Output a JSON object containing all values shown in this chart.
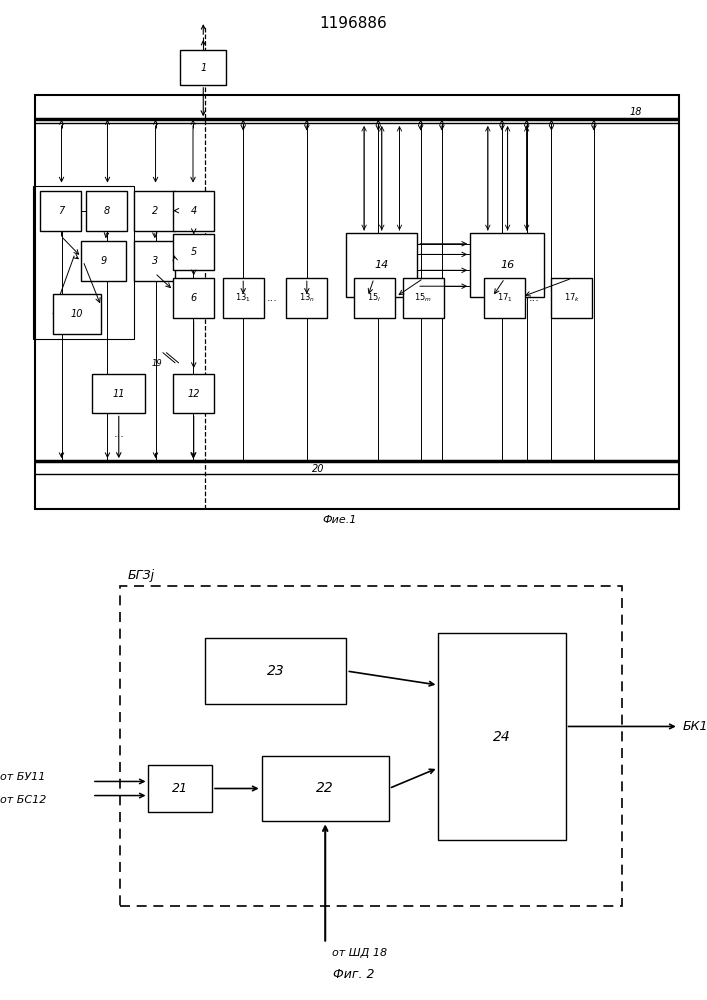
{
  "title": "1196886",
  "fig1_caption": "Фие.1",
  "fig2_caption": "Фиг. 2",
  "bg_color": "#ffffff"
}
